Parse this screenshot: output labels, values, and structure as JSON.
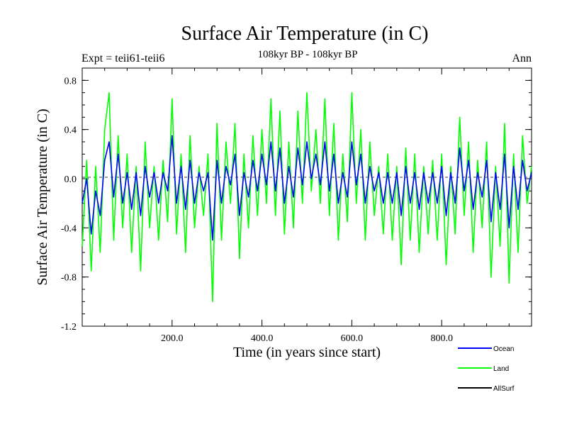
{
  "chart_data": {
    "type": "line",
    "title": "Surface Air Temperature (in C)",
    "subtitle": "108kyr BP - 108kyr BP",
    "left_label": "Expt = teii61-teii6",
    "right_label": "Ann",
    "xlabel": "Time (in years since start)",
    "ylabel": "Surface Air Temperature (in C)",
    "xlim": [
      0,
      1000
    ],
    "ylim": [
      -1.2,
      0.9
    ],
    "x_ticks": [
      200,
      400,
      600,
      800
    ],
    "x_tick_labels": [
      "200.0",
      "400.0",
      "600.0",
      "800.0"
    ],
    "y_ticks": [
      -1.2,
      -0.8,
      -0.4,
      0.0,
      0.4,
      0.8
    ],
    "y_tick_labels": [
      "-1.2",
      "-0.8",
      "-0.4",
      "0.0",
      "0.4",
      "0.8"
    ],
    "zero_line": true,
    "legend_position": "bottom-right",
    "series": [
      {
        "name": "Land",
        "color": "#00ff00",
        "x": [
          0,
          10,
          20,
          30,
          40,
          50,
          60,
          70,
          80,
          90,
          100,
          110,
          120,
          130,
          140,
          150,
          160,
          170,
          180,
          190,
          200,
          210,
          220,
          230,
          240,
          250,
          260,
          270,
          280,
          290,
          300,
          310,
          320,
          330,
          340,
          350,
          360,
          370,
          380,
          390,
          400,
          410,
          420,
          430,
          440,
          450,
          460,
          470,
          480,
          490,
          500,
          510,
          520,
          530,
          540,
          550,
          560,
          570,
          580,
          590,
          600,
          610,
          620,
          630,
          640,
          650,
          660,
          670,
          680,
          690,
          700,
          710,
          720,
          730,
          740,
          750,
          760,
          770,
          780,
          790,
          800,
          810,
          820,
          830,
          840,
          850,
          860,
          870,
          880,
          890,
          900,
          910,
          920,
          930,
          940,
          950,
          960,
          970,
          980,
          990,
          1000
        ],
        "y": [
          -0.55,
          0.15,
          -0.75,
          0.1,
          -0.6,
          0.4,
          0.7,
          -0.5,
          0.35,
          -0.4,
          0.2,
          -0.6,
          0.1,
          -0.75,
          0.3,
          -0.4,
          0.1,
          -0.5,
          0.15,
          -0.35,
          0.65,
          -0.45,
          0.2,
          -0.6,
          0.35,
          -0.4,
          0.1,
          -0.3,
          0.2,
          -1.0,
          0.45,
          -0.5,
          0.3,
          -0.2,
          0.45,
          -0.65,
          0.2,
          -0.4,
          0.35,
          -0.3,
          0.4,
          -0.2,
          0.65,
          -0.3,
          0.55,
          -0.45,
          0.3,
          -0.4,
          0.55,
          -0.2,
          0.7,
          -0.1,
          0.4,
          -0.2,
          0.65,
          -0.3,
          0.45,
          -0.5,
          0.2,
          -0.35,
          0.7,
          -0.2,
          0.4,
          -0.5,
          0.3,
          -0.3,
          0.1,
          -0.45,
          0.2,
          -0.5,
          0.1,
          -0.7,
          0.25,
          -0.5,
          0.2,
          -0.6,
          0.1,
          -0.45,
          0.15,
          -0.5,
          0.2,
          -0.7,
          0.1,
          -0.45,
          0.5,
          -0.3,
          0.3,
          -0.6,
          0.15,
          -0.4,
          0.3,
          -0.8,
          0.1,
          -0.55,
          0.45,
          -0.85,
          0.2,
          -0.6,
          0.35,
          -0.2,
          0.1
        ]
      },
      {
        "name": "Ocean",
        "color": "#0000ff",
        "x": [
          0,
          10,
          20,
          30,
          40,
          50,
          60,
          70,
          80,
          90,
          100,
          110,
          120,
          130,
          140,
          150,
          160,
          170,
          180,
          190,
          200,
          210,
          220,
          230,
          240,
          250,
          260,
          270,
          280,
          290,
          300,
          310,
          320,
          330,
          340,
          350,
          360,
          370,
          380,
          390,
          400,
          410,
          420,
          430,
          440,
          450,
          460,
          470,
          480,
          490,
          500,
          510,
          520,
          530,
          540,
          550,
          560,
          570,
          580,
          590,
          600,
          610,
          620,
          630,
          640,
          650,
          660,
          670,
          680,
          690,
          700,
          710,
          720,
          730,
          740,
          750,
          760,
          770,
          780,
          790,
          800,
          810,
          820,
          830,
          840,
          850,
          860,
          870,
          880,
          890,
          900,
          910,
          920,
          930,
          940,
          950,
          960,
          970,
          980,
          990,
          1000
        ],
        "y": [
          -0.2,
          0.0,
          -0.45,
          -0.1,
          -0.3,
          0.15,
          0.3,
          -0.15,
          0.2,
          -0.2,
          0.05,
          -0.25,
          0.05,
          -0.3,
          0.1,
          -0.15,
          0.05,
          -0.2,
          0.05,
          -0.1,
          0.35,
          -0.2,
          0.1,
          -0.25,
          0.15,
          -0.2,
          0.05,
          -0.1,
          0.05,
          -0.5,
          0.15,
          -0.2,
          0.1,
          -0.05,
          0.2,
          -0.3,
          0.05,
          -0.15,
          0.15,
          -0.1,
          0.2,
          -0.05,
          0.3,
          -0.1,
          0.25,
          -0.2,
          0.1,
          -0.15,
          0.25,
          -0.05,
          0.3,
          0.0,
          0.2,
          -0.05,
          0.3,
          -0.1,
          0.2,
          -0.2,
          0.05,
          -0.15,
          0.3,
          -0.05,
          0.2,
          -0.2,
          0.1,
          -0.1,
          0.05,
          -0.2,
          0.05,
          -0.2,
          0.05,
          -0.3,
          0.1,
          -0.2,
          0.05,
          -0.25,
          0.05,
          -0.2,
          0.05,
          -0.2,
          0.1,
          -0.3,
          0.05,
          -0.2,
          0.25,
          -0.1,
          0.15,
          -0.25,
          0.05,
          -0.15,
          0.15,
          -0.35,
          0.05,
          -0.25,
          0.2,
          -0.4,
          0.1,
          -0.25,
          0.15,
          -0.1,
          0.05
        ]
      }
    ],
    "legend": [
      {
        "name": "Ocean",
        "color": "#0000ff"
      },
      {
        "name": "Land",
        "color": "#00ff00"
      },
      {
        "name": "AllSurf",
        "color": "#000000"
      }
    ]
  }
}
